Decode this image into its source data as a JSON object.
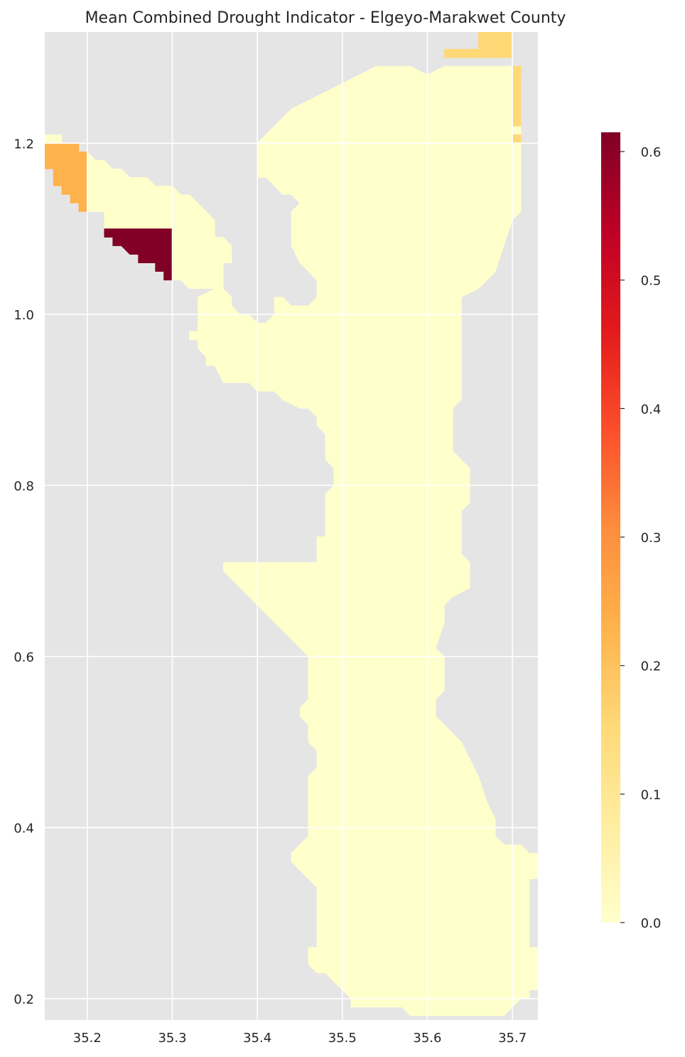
{
  "chart_data": {
    "type": "heatmap",
    "title": "Mean Combined Drought Indicator - Elgeyo-Marakwet County",
    "xlabel": "",
    "ylabel": "",
    "xlim": [
      35.15,
      35.73
    ],
    "ylim": [
      0.175,
      1.33
    ],
    "x_ticks": [
      "35.2",
      "35.3",
      "35.4",
      "35.5",
      "35.6",
      "35.7"
    ],
    "x_tick_values": [
      35.2,
      35.3,
      35.4,
      35.5,
      35.6,
      35.7
    ],
    "y_ticks": [
      "1.2",
      "1.0",
      "0.8",
      "0.6",
      "0.4",
      "0.2"
    ],
    "y_tick_values": [
      1.2,
      1.0,
      0.8,
      0.6,
      0.4,
      0.2
    ],
    "grid": true,
    "colormap": "YlOrRd",
    "colorbar": {
      "range": [
        0.0,
        0.615
      ],
      "ticks": [
        "0.0",
        "0.1",
        "0.2",
        "0.3",
        "0.4",
        "0.5",
        "0.6"
      ],
      "tick_values": [
        0.0,
        0.1,
        0.2,
        0.3,
        0.4,
        0.5,
        0.6
      ],
      "stops": [
        "#ffffcc",
        "#ffeda0",
        "#fed976",
        "#feb24c",
        "#fd8d3c",
        "#fc4e2a",
        "#e31a1c",
        "#bd0026",
        "#800026"
      ]
    },
    "colors": {
      "axes_bg": "#e5e5e5",
      "grid": "#ffffff"
    },
    "regions": [
      {
        "name": "main county area",
        "value": 0.0,
        "color": "#ffffcc",
        "polygon": [
          [
            35.4,
            1.2
          ],
          [
            35.41,
            1.21
          ],
          [
            35.42,
            1.22
          ],
          [
            35.43,
            1.23
          ],
          [
            35.44,
            1.24
          ],
          [
            35.46,
            1.25
          ],
          [
            35.48,
            1.26
          ],
          [
            35.5,
            1.27
          ],
          [
            35.52,
            1.28
          ],
          [
            35.54,
            1.29
          ],
          [
            35.58,
            1.29
          ],
          [
            35.6,
            1.28
          ],
          [
            35.62,
            1.29
          ],
          [
            35.7,
            1.29
          ],
          [
            35.71,
            1.28
          ],
          [
            35.71,
            1.12
          ],
          [
            35.7,
            1.11
          ],
          [
            35.69,
            1.08
          ],
          [
            35.68,
            1.05
          ],
          [
            35.67,
            1.04
          ],
          [
            35.66,
            1.03
          ],
          [
            35.64,
            1.02
          ],
          [
            35.64,
            0.9
          ],
          [
            35.63,
            0.89
          ],
          [
            35.63,
            0.84
          ],
          [
            35.64,
            0.83
          ],
          [
            35.65,
            0.82
          ],
          [
            35.65,
            0.78
          ],
          [
            35.64,
            0.77
          ],
          [
            35.64,
            0.72
          ],
          [
            35.65,
            0.71
          ],
          [
            35.65,
            0.68
          ],
          [
            35.63,
            0.67
          ],
          [
            35.62,
            0.66
          ],
          [
            35.62,
            0.64
          ],
          [
            35.61,
            0.61
          ],
          [
            35.62,
            0.6
          ],
          [
            35.62,
            0.56
          ],
          [
            35.61,
            0.55
          ],
          [
            35.61,
            0.53
          ],
          [
            35.62,
            0.52
          ],
          [
            35.63,
            0.51
          ],
          [
            35.64,
            0.5
          ],
          [
            35.65,
            0.48
          ],
          [
            35.66,
            0.46
          ],
          [
            35.67,
            0.43
          ],
          [
            35.68,
            0.41
          ],
          [
            35.68,
            0.39
          ],
          [
            35.69,
            0.38
          ],
          [
            35.7,
            0.38
          ],
          [
            35.71,
            0.38
          ],
          [
            35.72,
            0.37
          ],
          [
            35.73,
            0.37
          ],
          [
            35.73,
            0.34
          ],
          [
            35.72,
            0.34
          ],
          [
            35.72,
            0.26
          ],
          [
            35.73,
            0.26
          ],
          [
            35.73,
            0.21
          ],
          [
            35.72,
            0.21
          ],
          [
            35.72,
            0.2
          ],
          [
            35.71,
            0.2
          ],
          [
            35.7,
            0.19
          ],
          [
            35.69,
            0.18
          ],
          [
            35.58,
            0.18
          ],
          [
            35.57,
            0.19
          ],
          [
            35.51,
            0.19
          ],
          [
            35.51,
            0.2
          ],
          [
            35.5,
            0.21
          ],
          [
            35.49,
            0.22
          ],
          [
            35.48,
            0.23
          ],
          [
            35.47,
            0.23
          ],
          [
            35.46,
            0.24
          ],
          [
            35.46,
            0.26
          ],
          [
            35.47,
            0.26
          ],
          [
            35.47,
            0.33
          ],
          [
            35.46,
            0.34
          ],
          [
            35.45,
            0.35
          ],
          [
            35.44,
            0.36
          ],
          [
            35.44,
            0.37
          ],
          [
            35.45,
            0.38
          ],
          [
            35.46,
            0.39
          ],
          [
            35.46,
            0.46
          ],
          [
            35.47,
            0.47
          ],
          [
            35.47,
            0.49
          ],
          [
            35.46,
            0.5
          ],
          [
            35.46,
            0.52
          ],
          [
            35.45,
            0.53
          ],
          [
            35.45,
            0.54
          ],
          [
            35.46,
            0.55
          ],
          [
            35.46,
            0.6
          ],
          [
            35.45,
            0.61
          ],
          [
            35.44,
            0.62
          ],
          [
            35.43,
            0.63
          ],
          [
            35.42,
            0.64
          ],
          [
            35.41,
            0.65
          ],
          [
            35.4,
            0.66
          ],
          [
            35.39,
            0.67
          ],
          [
            35.38,
            0.68
          ],
          [
            35.37,
            0.69
          ],
          [
            35.36,
            0.7
          ],
          [
            35.36,
            0.71
          ],
          [
            35.47,
            0.71
          ],
          [
            35.47,
            0.74
          ],
          [
            35.48,
            0.74
          ],
          [
            35.48,
            0.79
          ],
          [
            35.49,
            0.8
          ],
          [
            35.49,
            0.82
          ],
          [
            35.48,
            0.83
          ],
          [
            35.48,
            0.86
          ],
          [
            35.47,
            0.87
          ],
          [
            35.47,
            0.88
          ],
          [
            35.46,
            0.89
          ],
          [
            35.45,
            0.89
          ],
          [
            35.43,
            0.9
          ],
          [
            35.42,
            0.91
          ],
          [
            35.4,
            0.91
          ],
          [
            35.39,
            0.92
          ],
          [
            35.36,
            0.92
          ],
          [
            35.35,
            0.94
          ],
          [
            35.34,
            0.94
          ],
          [
            35.34,
            0.95
          ],
          [
            35.33,
            0.96
          ],
          [
            35.33,
            0.97
          ],
          [
            35.32,
            0.97
          ],
          [
            35.32,
            0.98
          ],
          [
            35.33,
            0.98
          ],
          [
            35.33,
            1.02
          ],
          [
            35.35,
            1.03
          ],
          [
            35.36,
            1.03
          ],
          [
            35.37,
            1.02
          ],
          [
            35.37,
            1.01
          ],
          [
            35.38,
            1.0
          ],
          [
            35.39,
            1.0
          ],
          [
            35.4,
            0.99
          ],
          [
            35.41,
            0.99
          ],
          [
            35.42,
            1.0
          ],
          [
            35.42,
            1.02
          ],
          [
            35.43,
            1.02
          ],
          [
            35.44,
            1.01
          ],
          [
            35.46,
            1.01
          ],
          [
            35.47,
            1.02
          ],
          [
            35.47,
            1.04
          ],
          [
            35.46,
            1.05
          ],
          [
            35.45,
            1.06
          ],
          [
            35.44,
            1.08
          ],
          [
            35.44,
            1.12
          ],
          [
            35.45,
            1.13
          ],
          [
            35.44,
            1.14
          ],
          [
            35.43,
            1.14
          ],
          [
            35.42,
            1.15
          ],
          [
            35.41,
            1.16
          ],
          [
            35.4,
            1.16
          ],
          [
            35.4,
            1.18
          ]
        ]
      },
      {
        "name": "northwest arm",
        "value": 0.0,
        "color": "#ffffcc",
        "polygon": [
          [
            35.2,
            1.19
          ],
          [
            35.21,
            1.18
          ],
          [
            35.22,
            1.18
          ],
          [
            35.23,
            1.17
          ],
          [
            35.24,
            1.17
          ],
          [
            35.25,
            1.16
          ],
          [
            35.27,
            1.16
          ],
          [
            35.28,
            1.15
          ],
          [
            35.3,
            1.15
          ],
          [
            35.31,
            1.14
          ],
          [
            35.32,
            1.14
          ],
          [
            35.33,
            1.13
          ],
          [
            35.34,
            1.12
          ],
          [
            35.35,
            1.11
          ],
          [
            35.35,
            1.09
          ],
          [
            35.36,
            1.09
          ],
          [
            35.37,
            1.08
          ],
          [
            35.37,
            1.06
          ],
          [
            35.36,
            1.06
          ],
          [
            35.36,
            1.03
          ],
          [
            35.34,
            1.03
          ],
          [
            35.32,
            1.03
          ],
          [
            35.31,
            1.04
          ],
          [
            35.3,
            1.04
          ],
          [
            35.3,
            1.1
          ],
          [
            35.22,
            1.1
          ],
          [
            35.22,
            1.12
          ],
          [
            35.2,
            1.12
          ]
        ]
      },
      {
        "name": "dark red triangle",
        "value": 0.615,
        "color": "#800026",
        "polygon": [
          [
            35.22,
            1.1
          ],
          [
            35.3,
            1.1
          ],
          [
            35.3,
            1.04
          ],
          [
            35.29,
            1.04
          ],
          [
            35.29,
            1.05
          ],
          [
            35.28,
            1.05
          ],
          [
            35.28,
            1.06
          ],
          [
            35.26,
            1.06
          ],
          [
            35.26,
            1.07
          ],
          [
            35.25,
            1.07
          ],
          [
            35.24,
            1.08
          ],
          [
            35.23,
            1.08
          ],
          [
            35.23,
            1.09
          ],
          [
            35.22,
            1.09
          ]
        ]
      },
      {
        "name": "orange west corner",
        "value": 0.21,
        "color": "#feb24c",
        "polygon": [
          [
            35.15,
            1.2
          ],
          [
            35.19,
            1.2
          ],
          [
            35.19,
            1.19
          ],
          [
            35.2,
            1.19
          ],
          [
            35.2,
            1.12
          ],
          [
            35.19,
            1.12
          ],
          [
            35.19,
            1.13
          ],
          [
            35.18,
            1.13
          ],
          [
            35.18,
            1.14
          ],
          [
            35.17,
            1.14
          ],
          [
            35.17,
            1.15
          ],
          [
            35.16,
            1.15
          ],
          [
            35.16,
            1.17
          ],
          [
            35.15,
            1.17
          ]
        ]
      },
      {
        "name": "small yellow west cell",
        "value": 0.0,
        "color": "#ffffcc",
        "polygon": [
          [
            35.15,
            1.21
          ],
          [
            35.17,
            1.21
          ],
          [
            35.17,
            1.2
          ],
          [
            35.15,
            1.2
          ]
        ]
      },
      {
        "name": "northeast strip top",
        "value": 0.14,
        "color": "#fed976",
        "polygon": [
          [
            35.66,
            1.33
          ],
          [
            35.7,
            1.33
          ],
          [
            35.7,
            1.3
          ],
          [
            35.62,
            1.3
          ],
          [
            35.62,
            1.31
          ],
          [
            35.66,
            1.31
          ]
        ]
      },
      {
        "name": "northeast strip right",
        "value": 0.14,
        "color": "#fed976",
        "polygon": [
          [
            35.7,
            1.29
          ],
          [
            35.71,
            1.29
          ],
          [
            35.71,
            1.22
          ],
          [
            35.7,
            1.22
          ]
        ]
      },
      {
        "name": "northeast strip small",
        "value": 0.14,
        "color": "#fed976",
        "polygon": [
          [
            35.7,
            1.21
          ],
          [
            35.71,
            1.21
          ],
          [
            35.71,
            1.2
          ],
          [
            35.7,
            1.2
          ]
        ]
      }
    ]
  }
}
